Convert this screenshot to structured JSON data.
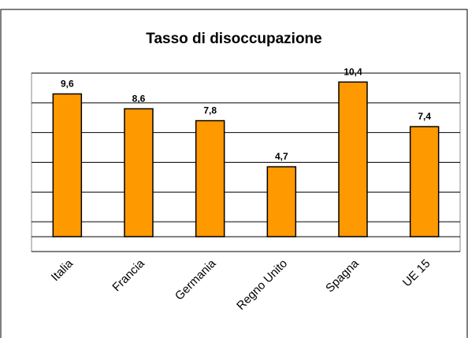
{
  "chart_data": {
    "type": "bar",
    "title": "Tasso di disoccupazione",
    "categories": [
      "Italia",
      "Francia",
      "Germania",
      "Regno Unito",
      "Spagna",
      "UE 15"
    ],
    "values": [
      9.6,
      8.6,
      7.8,
      4.7,
      10.4,
      7.4
    ],
    "value_labels": [
      "9,6",
      "8,6",
      "7,8",
      "4,7",
      "10,4",
      "7,4"
    ],
    "color": "#ff9900",
    "ylim": [
      -1,
      11
    ],
    "yticks": [
      -1,
      1,
      3,
      5,
      7,
      9,
      11
    ],
    "grid": true
  }
}
